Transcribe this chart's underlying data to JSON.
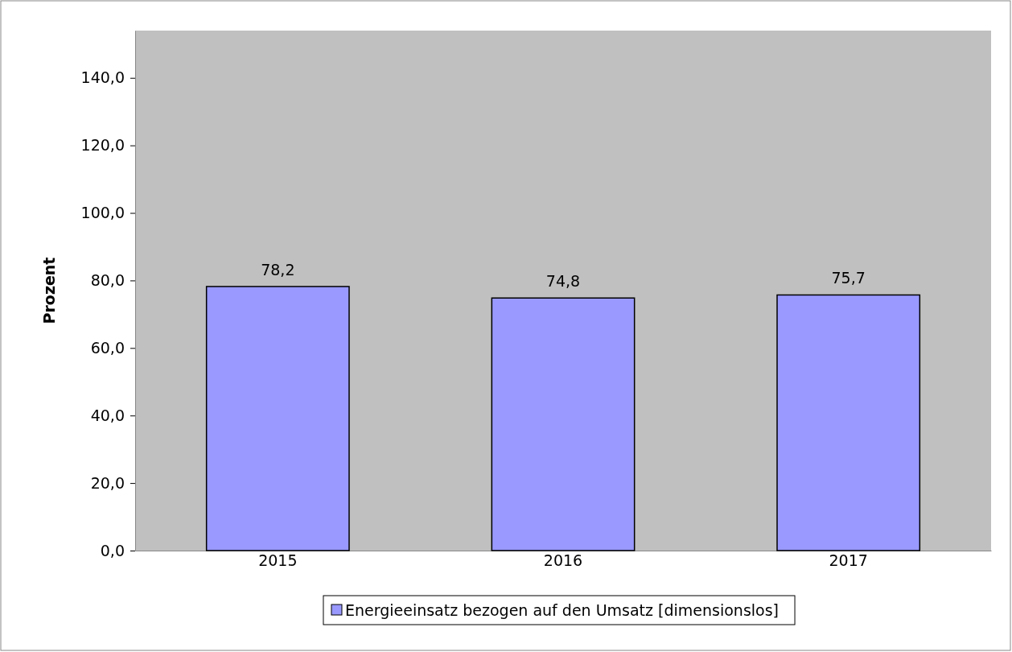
{
  "chart_data": {
    "type": "bar",
    "ylabel": "Prozent",
    "categories": [
      "2015",
      "2016",
      "2017"
    ],
    "series": [
      {
        "name": "Energieeinsatz bezogen auf den Umsatz [dimensionslos]",
        "color": "#9999ff",
        "values": [
          78.2,
          74.8,
          75.7
        ]
      }
    ],
    "ylim": [
      0,
      154
    ],
    "yticks": [
      {
        "value": 0,
        "label": "0,0"
      },
      {
        "value": 20,
        "label": "20,0"
      },
      {
        "value": 40,
        "label": "40,0"
      },
      {
        "value": 60,
        "label": "60,0"
      },
      {
        "value": 80,
        "label": "80,0"
      },
      {
        "value": 100,
        "label": "100,0"
      },
      {
        "value": 120,
        "label": "120,0"
      },
      {
        "value": 140,
        "label": "140,0"
      }
    ],
    "value_labels": [
      "78,2",
      "74,8",
      "75,7"
    ],
    "grid": false,
    "legend": "bottom"
  }
}
